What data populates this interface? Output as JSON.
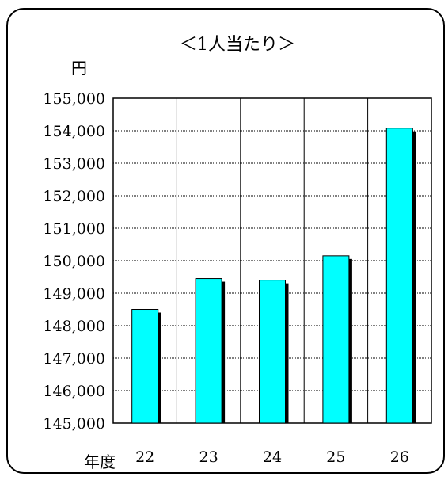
{
  "chart_data": {
    "type": "bar",
    "title": "＜1人当たり＞",
    "ylabel": "円",
    "xlabel": "年度",
    "categories": [
      "22",
      "23",
      "24",
      "25",
      "26"
    ],
    "values": [
      148500,
      149450,
      149400,
      150150,
      154080
    ],
    "ylim": [
      145000,
      155000
    ],
    "ytick_step": 1000,
    "yticks": [
      "145,000",
      "146,000",
      "147,000",
      "148,000",
      "149,000",
      "150,000",
      "151,000",
      "152,000",
      "153,000",
      "154,000",
      "155,000"
    ],
    "grid": true,
    "legend": "none",
    "colors": {
      "bar": "#00FFFF",
      "shadow": "#000000",
      "grid": "#000000"
    }
  }
}
